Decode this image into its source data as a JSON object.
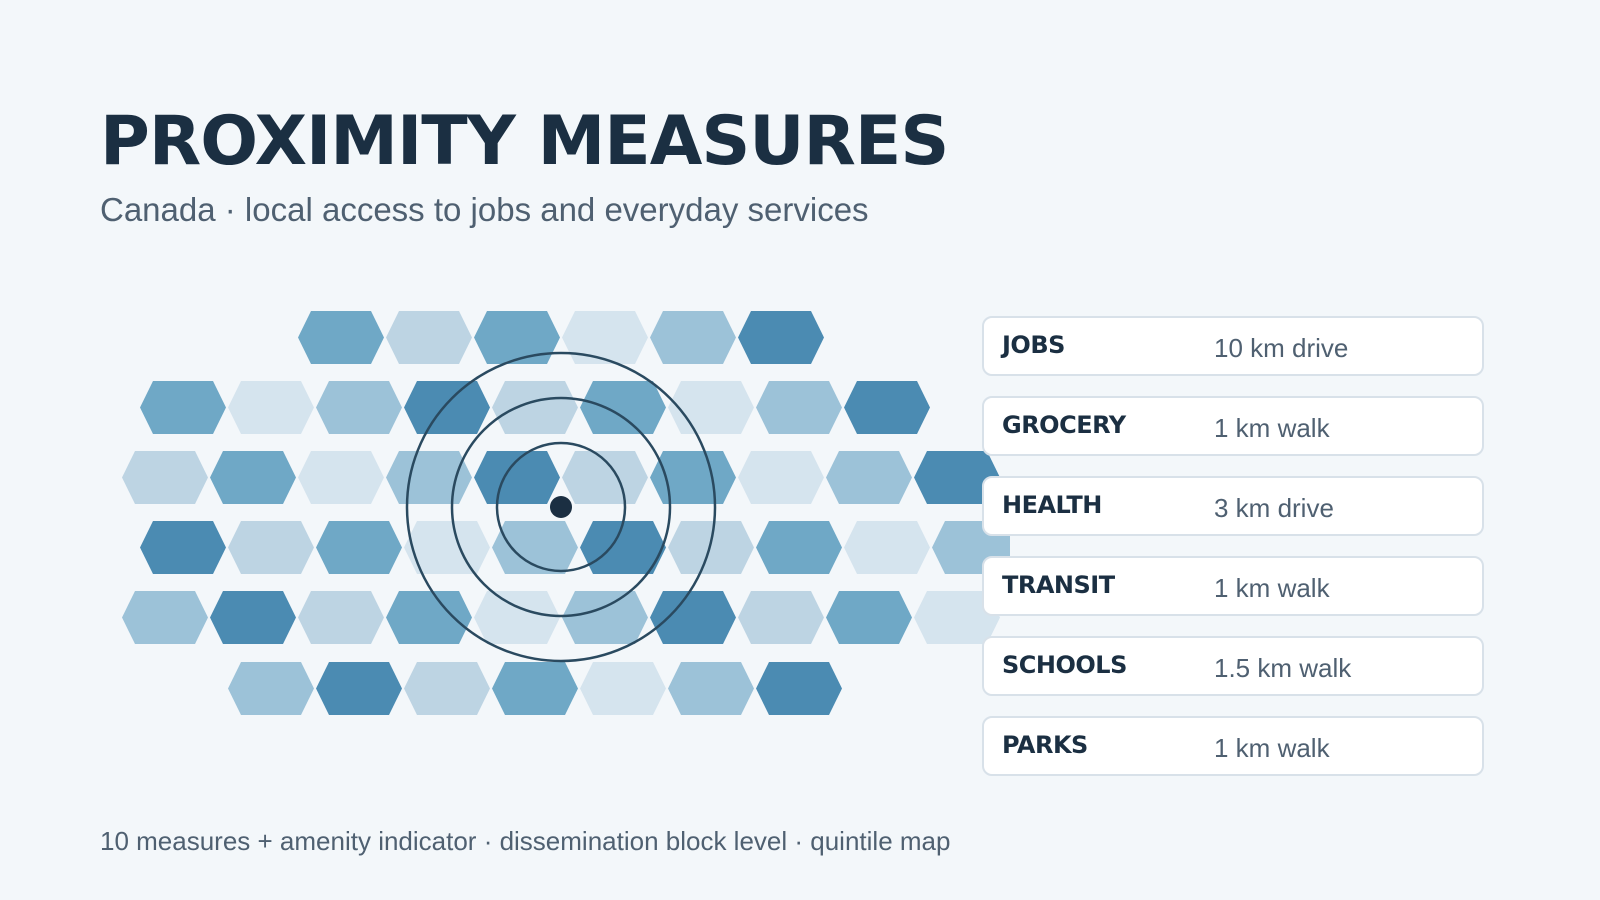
{
  "header": {
    "title": "PROXIMITY MEASURES",
    "subtitle": "Canada · local access to jobs and everyday services"
  },
  "map": {
    "type": "hexagon quintile map",
    "quintile_colors": [
      "#d5e4ee",
      "#bdd4e3",
      "#9cc2d8",
      "#6fa8c6",
      "#4b8bb2"
    ],
    "rows": [
      [
        3,
        1,
        3,
        0,
        2,
        4
      ],
      [
        3,
        0,
        2,
        4,
        1,
        3,
        0,
        2,
        4
      ],
      [
        1,
        3,
        0,
        2,
        4,
        1,
        3,
        0,
        2,
        4
      ],
      [
        4,
        1,
        3,
        0,
        2,
        4,
        1,
        3,
        0,
        2
      ],
      [
        2,
        4,
        1,
        3,
        0,
        2,
        4,
        1,
        3,
        0
      ],
      [
        2,
        4,
        1,
        3,
        0,
        2,
        4
      ]
    ],
    "rings": 3,
    "ring_color": "#2a4a60",
    "center_dot_color": "#1b2f42"
  },
  "measures": [
    {
      "label": "JOBS",
      "value": "10 km drive"
    },
    {
      "label": "GROCERY",
      "value": "1 km walk"
    },
    {
      "label": "HEALTH",
      "value": "3 km drive"
    },
    {
      "label": "TRANSIT",
      "value": "1 km walk"
    },
    {
      "label": "SCHOOLS",
      "value": "1.5 km walk"
    },
    {
      "label": "PARKS",
      "value": "1 km walk"
    }
  ],
  "footer": {
    "text": "10 measures + amenity indicator · dissemination block level · quintile map"
  }
}
